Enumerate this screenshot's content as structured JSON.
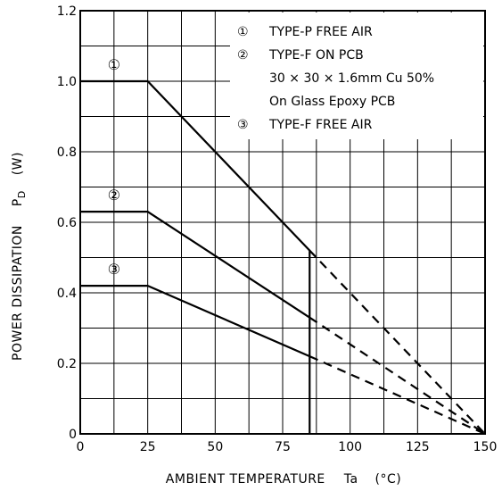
{
  "chart_data": {
    "type": "line",
    "title": "",
    "xlabel": "AMBIENT TEMPERATURE",
    "xlabel_symbol": "Ta",
    "xlabel_unit": "(°C)",
    "ylabel": "POWER DISSIPATION",
    "ylabel_symbol": "P",
    "ylabel_symbol_sub": "D",
    "ylabel_unit": "(W)",
    "xlim": [
      0,
      150
    ],
    "ylim": [
      0,
      1.2
    ],
    "x_ticks": [
      0,
      25,
      50,
      75,
      100,
      125,
      150
    ],
    "x_tick_labels": [
      "0",
      "25",
      "50",
      "75",
      "100",
      "125",
      "150"
    ],
    "y_ticks": [
      0,
      0.2,
      0.4,
      0.6,
      0.8,
      1.0,
      1.2
    ],
    "y_tick_labels": [
      "0",
      "0.2",
      "0.4",
      "0.6",
      "0.8",
      "1.0",
      "1.2"
    ],
    "grid": true,
    "grid_x_step": 12.5,
    "grid_y_step": 0.1,
    "series": [
      {
        "marker": "①",
        "solid": [
          [
            0,
            1.0
          ],
          [
            25,
            1.0
          ],
          [
            85,
            0.52
          ],
          [
            85,
            0
          ]
        ],
        "dashed": [
          [
            85,
            0.52
          ],
          [
            150,
            0
          ]
        ]
      },
      {
        "marker": "②",
        "solid": [
          [
            0,
            0.63
          ],
          [
            25,
            0.63
          ],
          [
            85,
            0.33
          ]
        ],
        "dashed": [
          [
            85,
            0.33
          ],
          [
            150,
            0
          ]
        ]
      },
      {
        "marker": "③",
        "solid": [
          [
            0,
            0.42
          ],
          [
            25,
            0.42
          ],
          [
            85,
            0.22
          ]
        ],
        "dashed": [
          [
            85,
            0.22
          ],
          [
            150,
            0
          ]
        ]
      }
    ],
    "legend_placement": "top-right",
    "legend": [
      {
        "marker": "①",
        "lines": [
          "TYPE-P FREE AIR"
        ]
      },
      {
        "marker": "②",
        "lines": [
          "TYPE-F ON PCB",
          "30 × 30 × 1.6mm Cu 50%",
          "On Glass Epoxy PCB"
        ]
      },
      {
        "marker": "③",
        "lines": [
          "TYPE-F FREE AIR"
        ]
      }
    ]
  }
}
